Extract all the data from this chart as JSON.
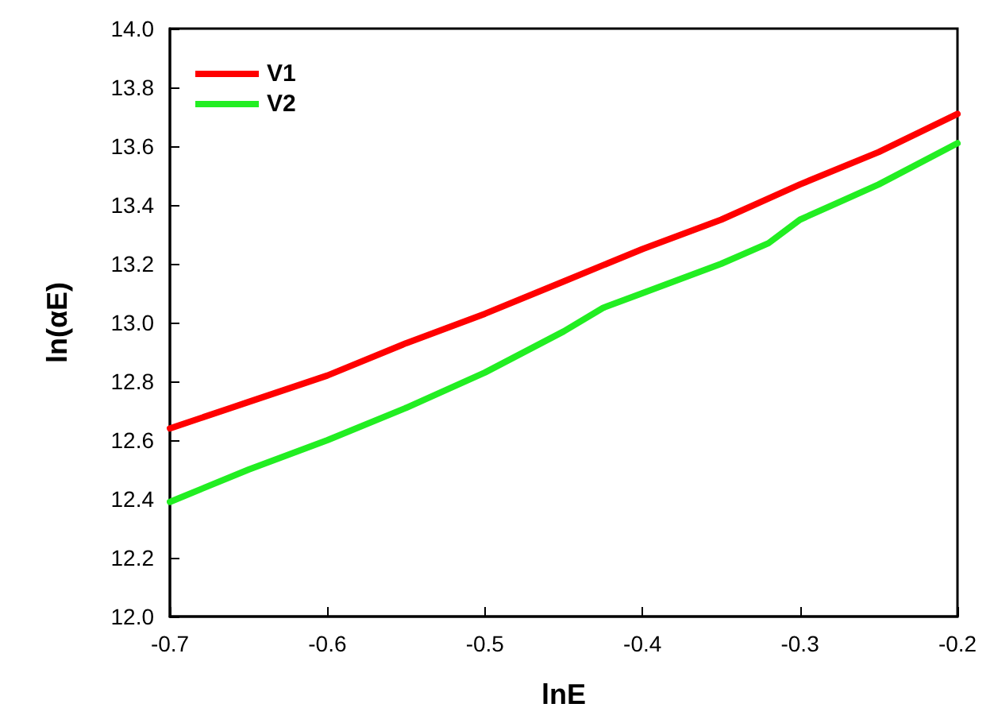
{
  "chart_data": {
    "type": "line",
    "xlabel": "lnE",
    "ylabel": "ln(αE)",
    "xlim": [
      -0.7,
      -0.2
    ],
    "xticks": [
      -0.7,
      -0.6,
      -0.5,
      -0.4,
      -0.3,
      -0.2
    ],
    "ylim": [
      12.0,
      14.0
    ],
    "yticks": [
      {
        "value": 12,
        "label": "12.0"
      },
      12.2,
      12.4,
      12.6,
      12.8,
      {
        "value": 13,
        "label": "13.0"
      },
      13.2,
      13.4,
      13.6,
      13.8,
      {
        "value": 14,
        "label": "14.0"
      }
    ],
    "grid": false,
    "legend": "top left",
    "marker": "none",
    "line_style": "solid",
    "series": [
      {
        "name": "V1",
        "color": "#ff0000",
        "x": [
          -0.7,
          -0.65,
          -0.6,
          -0.55,
          -0.5,
          -0.45,
          -0.4,
          -0.35,
          -0.3,
          -0.25,
          -0.2
        ],
        "values": [
          12.64,
          12.73,
          12.82,
          12.93,
          13.03,
          13.14,
          13.25,
          13.35,
          13.47,
          13.58,
          13.71
        ]
      },
      {
        "name": "V2",
        "color": "#22ee22",
        "x": [
          -0.7,
          -0.65,
          -0.6,
          -0.55,
          -0.5,
          -0.45,
          -0.425,
          -0.4,
          -0.35,
          -0.32,
          -0.3,
          -0.25,
          -0.2
        ],
        "values": [
          12.39,
          12.5,
          12.6,
          12.71,
          12.83,
          12.97,
          13.05,
          13.1,
          13.2,
          13.27,
          13.35,
          13.47,
          13.61
        ]
      }
    ]
  }
}
